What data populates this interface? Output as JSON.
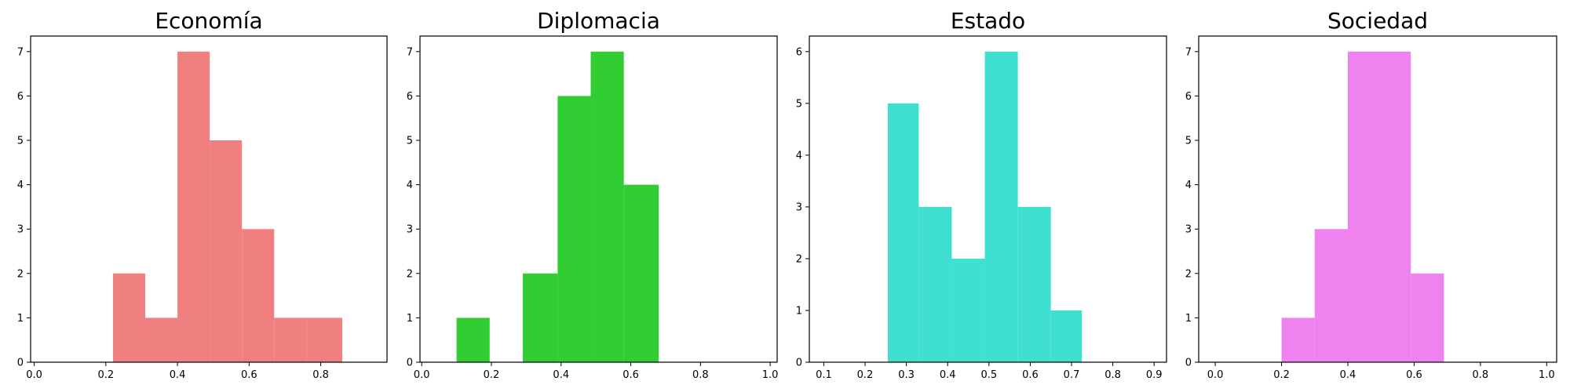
{
  "chart_data": [
    {
      "type": "bar",
      "title": "Economía",
      "color": "#f08080",
      "xlim": [
        -0.01,
        0.985
      ],
      "ylim": [
        0,
        7.35
      ],
      "xticks": [
        0.0,
        0.2,
        0.4,
        0.6,
        0.8
      ],
      "xtick_labels": [
        "0.0",
        "0.2",
        "0.4",
        "0.6",
        "0.8"
      ],
      "yticks": [
        0,
        1,
        2,
        3,
        4,
        5,
        6,
        7
      ],
      "ytick_labels": [
        "0",
        "1",
        "2",
        "3",
        "4",
        "5",
        "6",
        "7"
      ],
      "bins": [
        {
          "x0": 0.22,
          "x1": 0.31,
          "count": 2
        },
        {
          "x0": 0.31,
          "x1": 0.4,
          "count": 1
        },
        {
          "x0": 0.4,
          "x1": 0.49,
          "count": 7
        },
        {
          "x0": 0.49,
          "x1": 0.58,
          "count": 5
        },
        {
          "x0": 0.58,
          "x1": 0.67,
          "count": 3
        },
        {
          "x0": 0.67,
          "x1": 0.76,
          "count": 1
        },
        {
          "x0": 0.76,
          "x1": 0.86,
          "count": 1
        }
      ]
    },
    {
      "type": "bar",
      "title": "Diplomacia",
      "color": "#32cd32",
      "xlim": [
        -0.005,
        1.02
      ],
      "ylim": [
        0,
        7.35
      ],
      "xticks": [
        0.0,
        0.2,
        0.4,
        0.6,
        0.8,
        1.0
      ],
      "xtick_labels": [
        "0.0",
        "0.2",
        "0.4",
        "0.6",
        "0.8",
        "1.0"
      ],
      "yticks": [
        0,
        1,
        2,
        3,
        4,
        5,
        6,
        7
      ],
      "ytick_labels": [
        "0",
        "1",
        "2",
        "3",
        "4",
        "5",
        "6",
        "7"
      ],
      "bins": [
        {
          "x0": 0.1,
          "x1": 0.195,
          "count": 1
        },
        {
          "x0": 0.29,
          "x1": 0.39,
          "count": 2
        },
        {
          "x0": 0.39,
          "x1": 0.485,
          "count": 6
        },
        {
          "x0": 0.485,
          "x1": 0.58,
          "count": 7
        },
        {
          "x0": 0.58,
          "x1": 0.68,
          "count": 4
        }
      ]
    },
    {
      "type": "bar",
      "title": "Estado",
      "color": "#40e0d0",
      "xlim": [
        0.065,
        0.93
      ],
      "ylim": [
        0,
        6.3
      ],
      "xticks": [
        0.1,
        0.2,
        0.3,
        0.4,
        0.5,
        0.6,
        0.7,
        0.8,
        0.9
      ],
      "xtick_labels": [
        "0.1",
        "0.2",
        "0.3",
        "0.4",
        "0.5",
        "0.6",
        "0.7",
        "0.8",
        "0.9"
      ],
      "yticks": [
        0,
        1,
        2,
        3,
        4,
        5,
        6
      ],
      "ytick_labels": [
        "0",
        "1",
        "2",
        "3",
        "4",
        "5",
        "6"
      ],
      "bins": [
        {
          "x0": 0.255,
          "x1": 0.33,
          "count": 5
        },
        {
          "x0": 0.33,
          "x1": 0.41,
          "count": 3
        },
        {
          "x0": 0.41,
          "x1": 0.49,
          "count": 2
        },
        {
          "x0": 0.49,
          "x1": 0.57,
          "count": 6
        },
        {
          "x0": 0.57,
          "x1": 0.65,
          "count": 3
        },
        {
          "x0": 0.65,
          "x1": 0.725,
          "count": 1
        }
      ]
    },
    {
      "type": "bar",
      "title": "Sociedad",
      "color": "#ee82ee",
      "xlim": [
        -0.05,
        1.03
      ],
      "ylim": [
        0,
        7.35
      ],
      "xticks": [
        0.0,
        0.2,
        0.4,
        0.6,
        0.8,
        1.0
      ],
      "xtick_labels": [
        "0.0",
        "0.2",
        "0.4",
        "0.6",
        "0.8",
        "1.0"
      ],
      "yticks": [
        0,
        1,
        2,
        3,
        4,
        5,
        6,
        7
      ],
      "ytick_labels": [
        "0",
        "1",
        "2",
        "3",
        "4",
        "5",
        "6",
        "7"
      ],
      "bins": [
        {
          "x0": 0.2,
          "x1": 0.3,
          "count": 1
        },
        {
          "x0": 0.3,
          "x1": 0.4,
          "count": 3
        },
        {
          "x0": 0.4,
          "x1": 0.49,
          "count": 7
        },
        {
          "x0": 0.49,
          "x1": 0.59,
          "count": 7
        },
        {
          "x0": 0.59,
          "x1": 0.69,
          "count": 2
        }
      ]
    }
  ]
}
